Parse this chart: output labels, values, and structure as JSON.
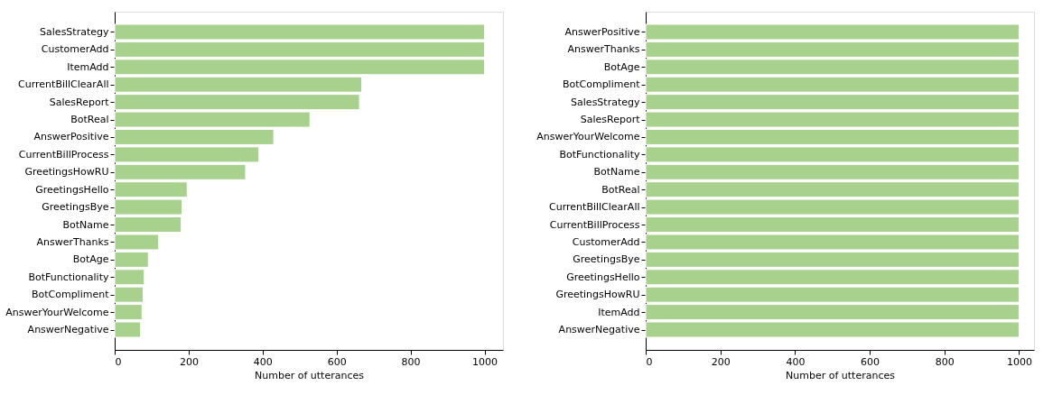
{
  "chart_data": [
    {
      "type": "bar",
      "orientation": "horizontal",
      "xlabel": "Number of utterances",
      "categories": [
        "SalesStrategy",
        "CustomerAdd",
        "ItemAdd",
        "CurrentBillClearAll",
        "SalesReport",
        "BotReal",
        "AnswerPositive",
        "CurrentBillProcess",
        "GreetingsHowRU",
        "GreetingsHello",
        "GreetingsBye",
        "BotName",
        "AnswerThanks",
        "BotAge",
        "BotFunctionality",
        "BotCompliment",
        "AnswerYourWelcome",
        "AnswerNegative"
      ],
      "values": [
        1000,
        1000,
        1000,
        668,
        662,
        528,
        430,
        390,
        354,
        196,
        182,
        180,
        119,
        91,
        80,
        77,
        74,
        70
      ],
      "color": "#a8d18d",
      "xlim": [
        0,
        1050
      ],
      "xticks": [
        0,
        200,
        400,
        600,
        800,
        1000
      ],
      "grid": false
    },
    {
      "type": "bar",
      "orientation": "horizontal",
      "xlabel": "Number of utterances",
      "categories": [
        "AnswerPositive",
        "AnswerThanks",
        "BotAge",
        "BotCompliment",
        "SalesStrategy",
        "SalesReport",
        "AnswerYourWelcome",
        "BotFunctionality",
        "BotName",
        "BotReal",
        "CurrentBillClearAll",
        "CurrentBillProcess",
        "CustomerAdd",
        "GreetingsBye",
        "GreetingsHello",
        "GreetingsHowRU",
        "ItemAdd",
        "AnswerNegative"
      ],
      "values": [
        1000,
        1000,
        1000,
        1000,
        1000,
        1000,
        1000,
        1000,
        1000,
        1000,
        1000,
        1000,
        1000,
        1000,
        1000,
        1000,
        1000,
        1000
      ],
      "color": "#a8d18d",
      "xlim": [
        0,
        1040
      ],
      "xticks": [
        0,
        200,
        400,
        600,
        800,
        1000
      ],
      "grid": false
    }
  ]
}
